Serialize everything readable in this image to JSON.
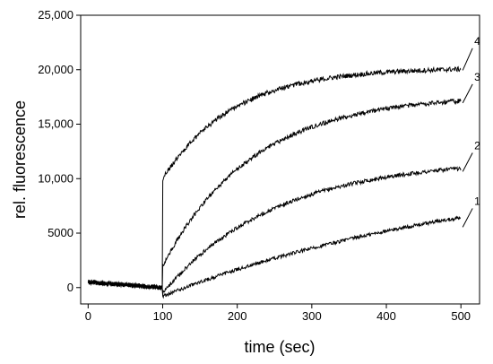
{
  "chart_data": {
    "type": "line",
    "xlabel": "time (sec)",
    "ylabel": "rel. fluorescence",
    "xlim": [
      -10,
      525
    ],
    "ylim": [
      -1500,
      25000
    ],
    "x_ticks": [
      0,
      100,
      200,
      300,
      400,
      500
    ],
    "y_ticks": [
      0,
      5000,
      10000,
      15000,
      20000,
      25000
    ],
    "x_tick_labels": [
      "0",
      "100",
      "200",
      "300",
      "400",
      "500"
    ],
    "y_tick_labels": [
      "0",
      "5000",
      "10,000",
      "15,000",
      "20,000",
      "25,000"
    ],
    "grid": false,
    "legend": "none",
    "series": [
      {
        "name": "1",
        "jump_at": 100,
        "baseline": 0,
        "post_start": -800,
        "plateau": 11500,
        "tau": 450,
        "end_value": 5300,
        "noise": 160,
        "color": "#000000"
      },
      {
        "name": "2",
        "jump_at": 100,
        "baseline": 0,
        "post_start": -500,
        "plateau": 11800,
        "tau": 150,
        "end_value": 10400,
        "noise": 180,
        "color": "#000000"
      },
      {
        "name": "3",
        "jump_at": 100,
        "baseline": 0,
        "post_start": 2000,
        "plateau": 17700,
        "tau": 120,
        "end_value": 16700,
        "noise": 200,
        "color": "#000000"
      },
      {
        "name": "4",
        "jump_at": 100,
        "baseline": 0,
        "post_start": 10000,
        "plateau": 20200,
        "tau": 95,
        "end_value": 19700,
        "noise": 220,
        "color": "#000000"
      }
    ],
    "curve_labels": [
      {
        "text": "1",
        "x": 518,
        "y": 7600
      },
      {
        "text": "2",
        "x": 518,
        "y": 12700
      },
      {
        "text": "3",
        "x": 518,
        "y": 19000
      },
      {
        "text": "4",
        "x": 518,
        "y": 22300
      }
    ]
  }
}
